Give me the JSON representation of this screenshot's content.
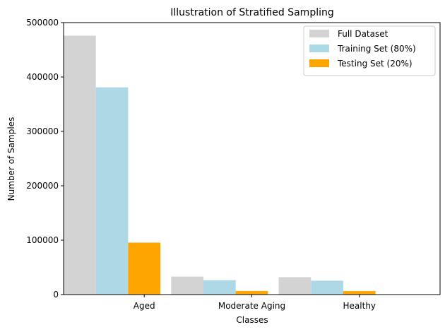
{
  "chart_data": {
    "type": "bar",
    "title": "Illustration of Stratified Sampling",
    "xlabel": "Classes",
    "ylabel": "Number of Samples",
    "categories": [
      "Aged",
      "Moderate Aging",
      "Healthy"
    ],
    "series": [
      {
        "name": "Full Dataset",
        "color": "#d3d3d3",
        "values": [
          476000,
          33000,
          32000
        ]
      },
      {
        "name": "Training Set (80%)",
        "color": "#add8e6",
        "values": [
          381000,
          26500,
          25500
        ]
      },
      {
        "name": "Testing Set (20%)",
        "color": "#ffa500",
        "values": [
          95500,
          6600,
          6400
        ]
      }
    ],
    "ylim": [
      0,
      500000
    ],
    "yticks": [
      0,
      100000,
      200000,
      300000,
      400000,
      500000
    ],
    "legend": "top-right",
    "grid": false
  }
}
